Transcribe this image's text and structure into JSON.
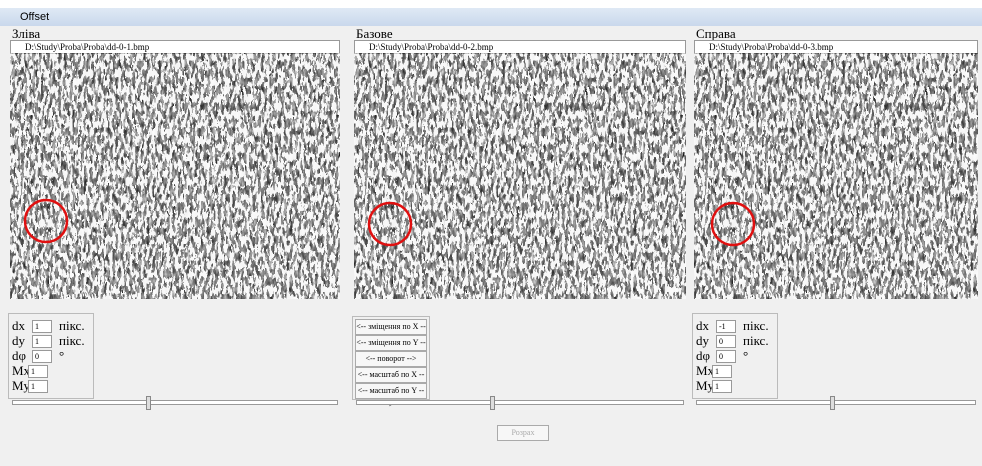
{
  "window": {
    "title": "Offset"
  },
  "panels": [
    {
      "title": "Зліва",
      "file": "D:\\Study\\Proba\\Proba\\dd-0-1.bmp",
      "fields": [
        {
          "label": "dx",
          "value": 1,
          "unit": "пікс."
        },
        {
          "label": "dy",
          "value": 1,
          "unit": "пікс."
        },
        {
          "label": "dφ",
          "value": 0,
          "unit": "°"
        },
        {
          "label": "Mx",
          "value": 1
        },
        {
          "label": "My",
          "value": 1
        }
      ]
    },
    {
      "title": "Базове",
      "file": "D:\\Study\\Proba\\Proba\\dd-0-2.bmp",
      "buttons": [
        "<-- зміщення по X -->",
        "<-- зміщення по Y -->",
        "<-- поворот -->",
        "<-- масштаб по X -->",
        "<-- масштаб по Y -->"
      ]
    },
    {
      "title": "Справа",
      "file": "D:\\Study\\Proba\\Proba\\dd-0-3.bmp",
      "fields": [
        {
          "label": "dx",
          "value": -1,
          "unit": "пікс."
        },
        {
          "label": "dy",
          "value": 0,
          "unit": "пікс."
        },
        {
          "label": "dφ",
          "value": 0,
          "unit": "°"
        },
        {
          "label": "Mx",
          "value": 1
        },
        {
          "label": "My",
          "value": 1
        }
      ]
    }
  ],
  "calculate": "Розрах"
}
